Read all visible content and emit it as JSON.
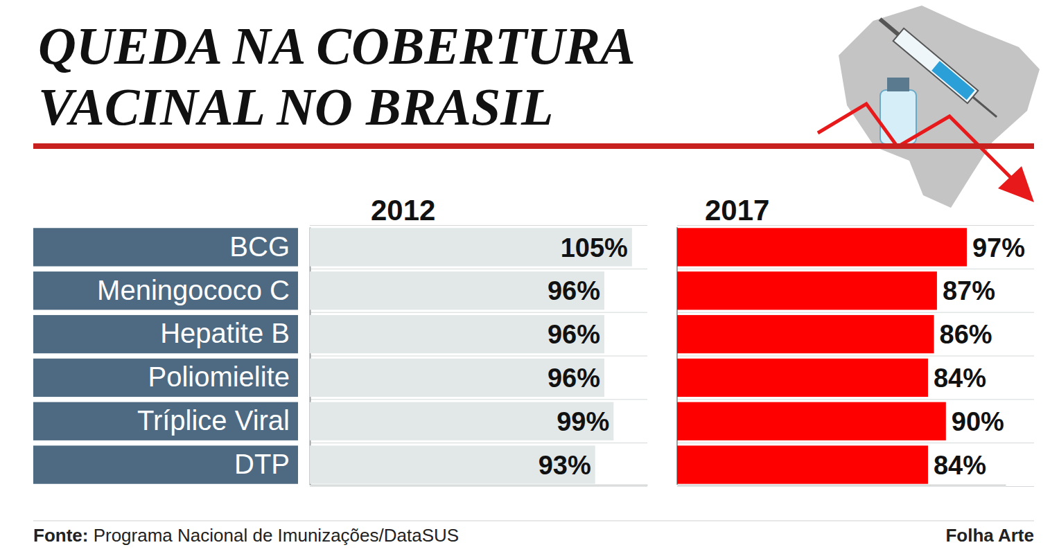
{
  "chart_data": {
    "type": "bar",
    "orientation": "horizontal",
    "title": "QUEDA NA COBERTURA VACINAL NO BRASIL",
    "categories": [
      "BCG",
      "Meningococo C",
      "Hepatite B",
      "Poliomielite",
      "Tríplice Viral",
      "DTP"
    ],
    "series": [
      {
        "name": "2012",
        "color": "#e2e8e8",
        "values": [
          105,
          96,
          96,
          96,
          99,
          93
        ],
        "value_labels": [
          "105%",
          "96%",
          "96%",
          "96%",
          "99%",
          "93%"
        ]
      },
      {
        "name": "2017",
        "color": "#ff0000",
        "values": [
          97,
          87,
          86,
          84,
          90,
          84
        ],
        "value_labels": [
          "97%",
          "87%",
          "86%",
          "84%",
          "90%",
          "84%"
        ]
      }
    ],
    "xlim": [
      0,
      110
    ],
    "data_labels": true,
    "tick_labels": "y",
    "grid": false,
    "source": "Fonte: Programa Nacional de Imunizações/DataSUS",
    "credit": "Folha Arte"
  }
}
